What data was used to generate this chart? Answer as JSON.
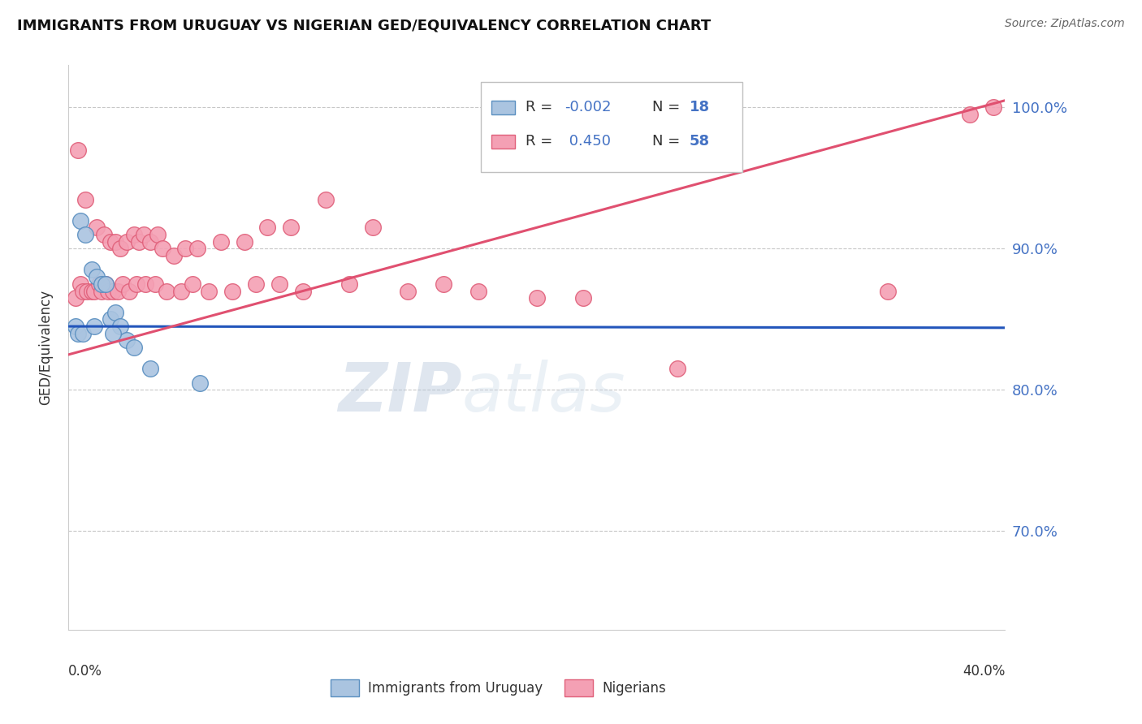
{
  "title": "IMMIGRANTS FROM URUGUAY VS NIGERIAN GED/EQUIVALENCY CORRELATION CHART",
  "source": "Source: ZipAtlas.com",
  "ylabel": "GED/Equivalency",
  "xlim": [
    0.0,
    40.0
  ],
  "ylim": [
    63.0,
    103.0
  ],
  "uruguay_color": "#aac4e0",
  "nigeria_color": "#f4a0b4",
  "uruguay_edge_color": "#5a8fc0",
  "nigeria_edge_color": "#e0607a",
  "trend_blue_color": "#2255bb",
  "trend_pink_color": "#e05070",
  "R_uruguay": -0.002,
  "N_uruguay": 18,
  "R_nigeria": 0.45,
  "N_nigeria": 58,
  "watermark_zip": "ZIP",
  "watermark_atlas": "atlas",
  "legend_label_1": "Immigrants from Uruguay",
  "legend_label_2": "Nigerians",
  "uruguay_trend_y0": 84.5,
  "uruguay_trend_y1": 84.4,
  "nigeria_trend_y0": 82.5,
  "nigeria_trend_y1": 100.5,
  "uruguay_x": [
    0.5,
    0.7,
    1.0,
    1.2,
    1.4,
    1.6,
    1.8,
    2.0,
    2.2,
    2.5,
    2.8,
    3.5,
    5.6,
    0.3,
    0.4,
    0.6,
    1.1,
    1.9
  ],
  "uruguay_y": [
    92.0,
    91.0,
    88.5,
    88.0,
    87.5,
    87.5,
    85.0,
    85.5,
    84.5,
    83.5,
    83.0,
    81.5,
    80.5,
    84.5,
    84.0,
    84.0,
    84.5,
    84.0
  ],
  "nigeria_x": [
    0.4,
    0.7,
    1.2,
    1.5,
    1.8,
    2.0,
    2.2,
    2.5,
    2.8,
    3.0,
    3.2,
    3.5,
    3.8,
    4.0,
    4.5,
    5.0,
    5.5,
    6.5,
    7.5,
    8.5,
    9.5,
    11.0,
    13.0,
    16.0,
    20.0,
    26.0,
    0.3,
    0.5,
    0.6,
    0.8,
    1.0,
    1.1,
    1.3,
    1.4,
    1.6,
    1.7,
    1.9,
    2.1,
    2.3,
    2.6,
    2.9,
    3.3,
    3.7,
    4.2,
    4.8,
    5.3,
    6.0,
    7.0,
    8.0,
    9.0,
    10.0,
    12.0,
    14.5,
    17.5,
    22.0,
    35.0,
    38.5,
    39.5
  ],
  "nigeria_y": [
    97.0,
    93.5,
    91.5,
    91.0,
    90.5,
    90.5,
    90.0,
    90.5,
    91.0,
    90.5,
    91.0,
    90.5,
    91.0,
    90.0,
    89.5,
    90.0,
    90.0,
    90.5,
    90.5,
    91.5,
    91.5,
    93.5,
    91.5,
    87.5,
    86.5,
    81.5,
    86.5,
    87.5,
    87.0,
    87.0,
    87.0,
    87.0,
    87.5,
    87.0,
    87.5,
    87.0,
    87.0,
    87.0,
    87.5,
    87.0,
    87.5,
    87.5,
    87.5,
    87.0,
    87.0,
    87.5,
    87.0,
    87.0,
    87.5,
    87.5,
    87.0,
    87.5,
    87.0,
    87.0,
    86.5,
    87.0,
    99.5,
    100.0
  ]
}
